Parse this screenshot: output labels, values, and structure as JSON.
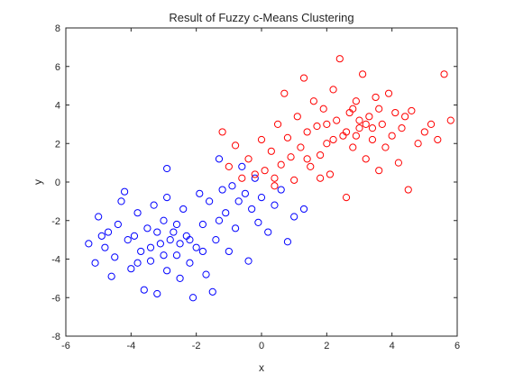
{
  "chart_data": {
    "type": "scatter",
    "title": "Result of Fuzzy c-Means Clustering",
    "xlabel": "x",
    "ylabel": "y",
    "xlim": [
      -6,
      6
    ],
    "ylim": [
      -8,
      8
    ],
    "xticks": [
      -6,
      -4,
      -2,
      0,
      2,
      4,
      6
    ],
    "yticks": [
      -8,
      -6,
      -4,
      -2,
      0,
      2,
      4,
      6,
      8
    ],
    "grid": false,
    "legend": "none",
    "marker": "open-circle",
    "series": [
      {
        "color": "#0000ff",
        "points": [
          [
            -5.3,
            -3.2
          ],
          [
            -5.1,
            -4.2
          ],
          [
            -5.0,
            -1.8
          ],
          [
            -4.8,
            -3.4
          ],
          [
            -4.7,
            -2.6
          ],
          [
            -4.6,
            -4.9
          ],
          [
            -4.5,
            -3.9
          ],
          [
            -4.4,
            -2.2
          ],
          [
            -4.3,
            -1.0
          ],
          [
            -4.2,
            -0.5
          ],
          [
            -4.1,
            -3.0
          ],
          [
            -4.0,
            -4.5
          ],
          [
            -3.9,
            -2.8
          ],
          [
            -3.8,
            -1.6
          ],
          [
            -3.7,
            -3.6
          ],
          [
            -3.6,
            -5.6
          ],
          [
            -3.5,
            -2.4
          ],
          [
            -3.4,
            -4.1
          ],
          [
            -3.3,
            -1.2
          ],
          [
            -3.2,
            -5.8
          ],
          [
            -3.1,
            -3.2
          ],
          [
            -3.0,
            -2.0
          ],
          [
            -2.9,
            -0.8
          ],
          [
            -2.9,
            -4.6
          ],
          [
            -2.8,
            -3.0
          ],
          [
            -2.7,
            -2.6
          ],
          [
            -2.6,
            -3.8
          ],
          [
            -2.5,
            -5.0
          ],
          [
            -2.4,
            -1.4
          ],
          [
            -2.3,
            -2.8
          ],
          [
            -2.2,
            -4.2
          ],
          [
            -2.1,
            -6.0
          ],
          [
            -2.0,
            -3.4
          ],
          [
            -1.9,
            -0.6
          ],
          [
            -1.8,
            -2.2
          ],
          [
            -1.7,
            -4.8
          ],
          [
            -1.6,
            -1.0
          ],
          [
            -1.5,
            -5.7
          ],
          [
            -1.4,
            -3.0
          ],
          [
            -1.3,
            -2.0
          ],
          [
            -1.2,
            -0.4
          ],
          [
            -1.1,
            -1.6
          ],
          [
            -1.0,
            -3.6
          ],
          [
            -0.9,
            -0.2
          ],
          [
            -0.8,
            -2.4
          ],
          [
            -0.7,
            -1.0
          ],
          [
            -0.6,
            0.8
          ],
          [
            -0.5,
            -0.6
          ],
          [
            -0.4,
            -4.1
          ],
          [
            -0.3,
            -1.4
          ],
          [
            -0.2,
            0.2
          ],
          [
            -0.1,
            -2.1
          ],
          [
            0.0,
            -0.8
          ],
          [
            0.2,
            -2.6
          ],
          [
            0.4,
            -1.2
          ],
          [
            0.6,
            -0.4
          ],
          [
            0.8,
            -3.1
          ],
          [
            1.0,
            -1.8
          ],
          [
            1.3,
            -1.4
          ],
          [
            -4.9,
            -2.8
          ],
          [
            -3.4,
            -3.4
          ],
          [
            -3.0,
            -3.8
          ],
          [
            -2.6,
            -2.2
          ],
          [
            -2.2,
            -3.0
          ],
          [
            -1.8,
            -3.6
          ],
          [
            -3.8,
            -4.2
          ],
          [
            -2.9,
            0.7
          ],
          [
            -1.3,
            1.2
          ],
          [
            -2.5,
            -3.2
          ],
          [
            -3.2,
            -2.6
          ]
        ]
      },
      {
        "color": "#ff0000",
        "points": [
          [
            -1.2,
            2.6
          ],
          [
            -1.0,
            0.8
          ],
          [
            -0.8,
            1.9
          ],
          [
            -0.6,
            0.2
          ],
          [
            -0.4,
            1.2
          ],
          [
            -0.2,
            0.4
          ],
          [
            0.0,
            2.2
          ],
          [
            0.1,
            0.6
          ],
          [
            0.3,
            1.6
          ],
          [
            0.4,
            -0.2
          ],
          [
            0.5,
            3.0
          ],
          [
            0.6,
            0.9
          ],
          [
            0.7,
            4.6
          ],
          [
            0.8,
            2.3
          ],
          [
            0.9,
            1.3
          ],
          [
            1.0,
            0.1
          ],
          [
            1.1,
            3.4
          ],
          [
            1.2,
            1.8
          ],
          [
            1.3,
            5.4
          ],
          [
            1.4,
            2.6
          ],
          [
            1.5,
            0.8
          ],
          [
            1.6,
            4.2
          ],
          [
            1.7,
            2.9
          ],
          [
            1.8,
            1.4
          ],
          [
            1.9,
            3.8
          ],
          [
            2.0,
            2.0
          ],
          [
            2.1,
            0.4
          ],
          [
            2.2,
            4.8
          ],
          [
            2.3,
            3.2
          ],
          [
            2.4,
            6.4
          ],
          [
            2.5,
            2.4
          ],
          [
            2.6,
            -0.8
          ],
          [
            2.7,
            3.6
          ],
          [
            2.8,
            1.8
          ],
          [
            2.9,
            4.2
          ],
          [
            3.0,
            2.8
          ],
          [
            3.1,
            5.6
          ],
          [
            3.2,
            1.2
          ],
          [
            3.3,
            3.4
          ],
          [
            3.4,
            2.2
          ],
          [
            3.5,
            4.4
          ],
          [
            3.6,
            0.6
          ],
          [
            3.7,
            3.0
          ],
          [
            3.8,
            1.8
          ],
          [
            3.9,
            4.6
          ],
          [
            4.0,
            2.4
          ],
          [
            4.1,
            3.6
          ],
          [
            4.2,
            1.0
          ],
          [
            4.3,
            2.8
          ],
          [
            4.4,
            3.4
          ],
          [
            4.5,
            -0.4
          ],
          [
            4.6,
            3.7
          ],
          [
            4.8,
            2.0
          ],
          [
            5.0,
            2.6
          ],
          [
            5.2,
            3.0
          ],
          [
            5.4,
            2.2
          ],
          [
            5.6,
            5.6
          ],
          [
            5.8,
            3.2
          ],
          [
            2.0,
            3.0
          ],
          [
            2.6,
            2.6
          ],
          [
            3.0,
            3.2
          ],
          [
            3.4,
            2.8
          ],
          [
            2.8,
            3.8
          ],
          [
            3.6,
            3.8
          ],
          [
            2.2,
            2.2
          ],
          [
            1.4,
            1.2
          ],
          [
            0.4,
            0.2
          ],
          [
            1.8,
            0.2
          ],
          [
            3.2,
            3.0
          ],
          [
            2.9,
            2.4
          ]
        ]
      }
    ]
  }
}
